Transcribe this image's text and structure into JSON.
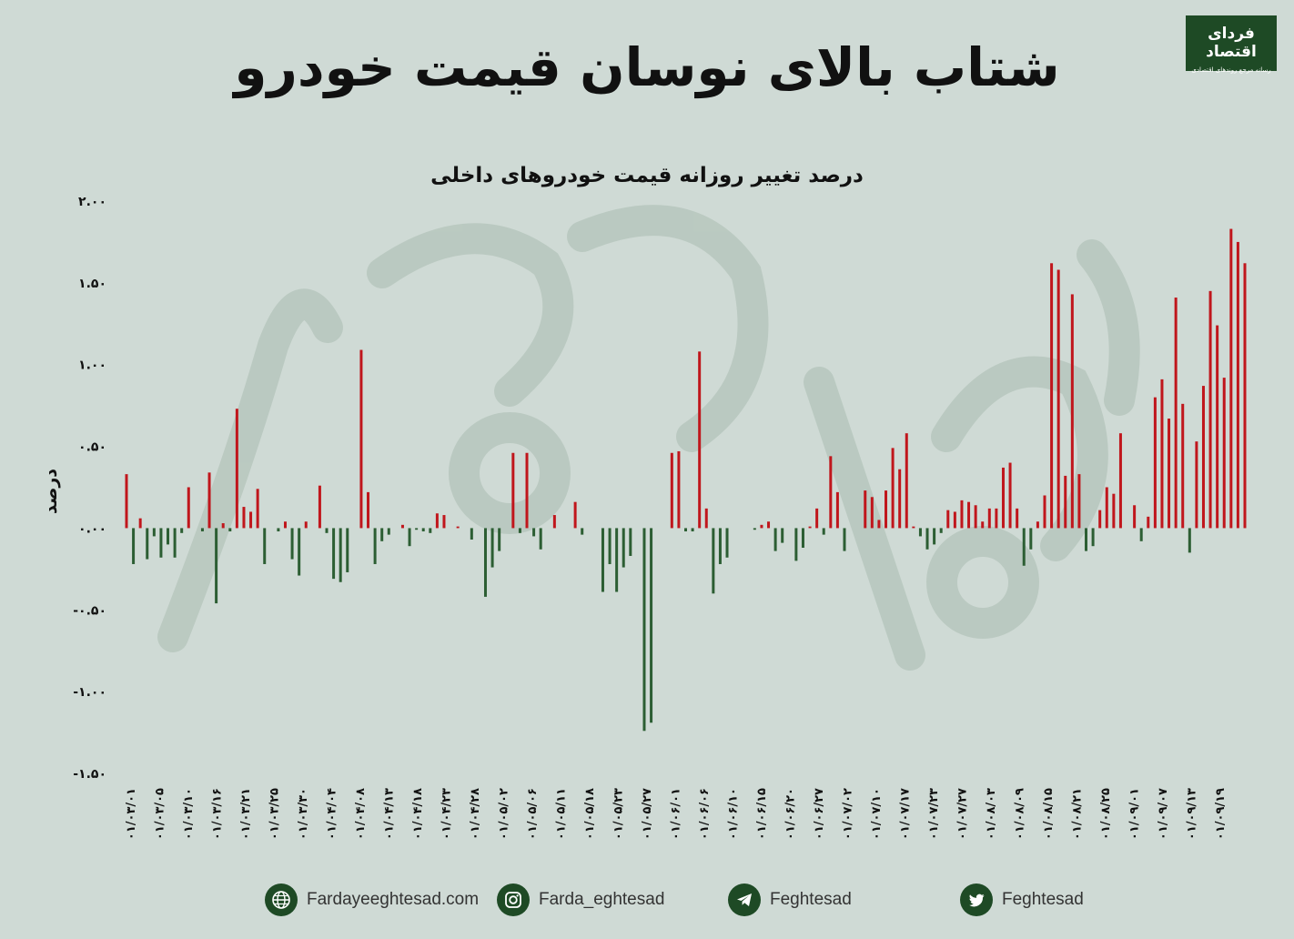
{
  "header": {
    "title": "شتاب بالای نوسان قیمت خودرو",
    "logo_name": "فردای اقتصاد",
    "logo_tagline": "رسانه مرجع روندهای اقتصادی"
  },
  "footer": {
    "website": "Fardayeeghtesad.com",
    "instagram": "Farda_eghtesad",
    "telegram": "Feghtesad",
    "twitter": "Feghtesad"
  },
  "colors": {
    "positive": "#c0161c",
    "negative": "#2c5e33",
    "background": "#cfdad5",
    "brand": "#1e4a25"
  },
  "chart_data": {
    "type": "bar",
    "title": "درصد تغییر روزانه قیمت خودروهای داخلی",
    "ylabel": "درصد",
    "xlabel": "",
    "ylim": [
      -1.5,
      2.0
    ],
    "yticks": [
      2.0,
      1.5,
      1.0,
      0.5,
      0.0,
      -0.5,
      -1.0,
      -1.5
    ],
    "ytick_labels": [
      "۲.۰۰",
      "۱.۵۰",
      "۱.۰۰",
      "۰.۵۰",
      "۰.۰۰",
      "-۰.۵۰",
      "-۱.۰۰",
      "-۱.۵۰"
    ],
    "grid": false,
    "legend": false,
    "xtick_labels": [
      "۰۱/۰۳/۰۱",
      "۰۱/۰۳/۰۵",
      "۰۱/۰۳/۱۰",
      "۰۱/۰۳/۱۶",
      "۰۱/۰۳/۲۱",
      "۰۱/۰۳/۲۵",
      "۰۱/۰۳/۳۰",
      "۰۱/۰۴/۰۴",
      "۰۱/۰۴/۰۸",
      "۰۱/۰۴/۱۳",
      "۰۱/۰۴/۱۸",
      "۰۱/۰۴/۲۳",
      "۰۱/۰۴/۲۸",
      "۰۱/۰۵/۰۲",
      "۰۱/۰۵/۰۶",
      "۰۱/۰۵/۱۱",
      "۰۱/۰۵/۱۸",
      "۰۱/۰۵/۲۳",
      "۰۱/۰۵/۲۷",
      "۰۱/۰۶/۰۱",
      "۰۱/۰۶/۰۶",
      "۰۱/۰۶/۱۰",
      "۰۱/۰۶/۱۵",
      "۰۱/۰۶/۲۰",
      "۰۱/۰۶/۲۷",
      "۰۱/۰۷/۰۲",
      "۰۱/۰۷/۱۰",
      "۰۱/۰۷/۱۷",
      "۰۱/۰۷/۲۳",
      "۰۱/۰۷/۲۷",
      "۰۱/۰۸/۰۳",
      "۰۱/۰۸/۰۹",
      "۰۱/۰۸/۱۵",
      "۰۱/۰۸/۲۱",
      "۰۱/۰۸/۲۵",
      "۰۱/۰۹/۰۱",
      "۰۱/۰۹/۰۷",
      "۰۱/۰۹/۱۳",
      "۰۱/۰۹/۱۹"
    ],
    "values": [
      0.33,
      -0.22,
      0.06,
      -0.19,
      -0.05,
      -0.18,
      -0.1,
      -0.18,
      -0.03,
      0.25,
      0.0,
      -0.02,
      0.34,
      -0.46,
      0.03,
      -0.02,
      0.73,
      0.13,
      0.1,
      0.24,
      -0.22,
      0.0,
      -0.02,
      0.04,
      -0.19,
      -0.29,
      0.04,
      0.0,
      0.26,
      -0.03,
      -0.31,
      -0.33,
      -0.27,
      0.0,
      1.09,
      0.22,
      -0.22,
      -0.08,
      -0.04,
      0.0,
      0.02,
      -0.11,
      -0.01,
      -0.02,
      -0.03,
      0.09,
      0.08,
      0.0,
      0.01,
      0.0,
      -0.07,
      0.0,
      -0.42,
      -0.24,
      -0.14,
      0.0,
      0.46,
      -0.03,
      0.46,
      -0.05,
      -0.13,
      0.0,
      0.08,
      0.0,
      0.0,
      0.16,
      -0.04,
      0.0,
      0.0,
      -0.39,
      -0.22,
      -0.39,
      -0.24,
      -0.17,
      0.0,
      -1.24,
      -1.19,
      0.0,
      0.0,
      0.46,
      0.47,
      -0.02,
      -0.02,
      1.08,
      0.12,
      -0.4,
      -0.22,
      -0.18,
      0.0,
      0.0,
      0.0,
      -0.01,
      0.02,
      0.04,
      -0.14,
      -0.09,
      0.0,
      -0.2,
      -0.12,
      0.01,
      0.12,
      -0.04,
      0.44,
      0.22,
      -0.14,
      0.0,
      0.0,
      0.23,
      0.19,
      0.05,
      0.23,
      0.49,
      0.36,
      0.58,
      0.01,
      -0.05,
      -0.13,
      -0.1,
      -0.03,
      0.11,
      0.1,
      0.17,
      0.16,
      0.14,
      0.04,
      0.12,
      0.12,
      0.37,
      0.4,
      0.12,
      -0.23,
      -0.13,
      0.04,
      0.2,
      1.62,
      1.58,
      0.32,
      1.43,
      0.33,
      -0.14,
      -0.11,
      0.11,
      0.25,
      0.21,
      0.58,
      0.0,
      0.14,
      -0.08,
      0.07,
      0.8,
      0.91,
      0.67,
      1.41,
      0.76,
      -0.15,
      0.53,
      0.87,
      1.45,
      1.24,
      0.92,
      1.83,
      1.75,
      1.62
    ]
  }
}
